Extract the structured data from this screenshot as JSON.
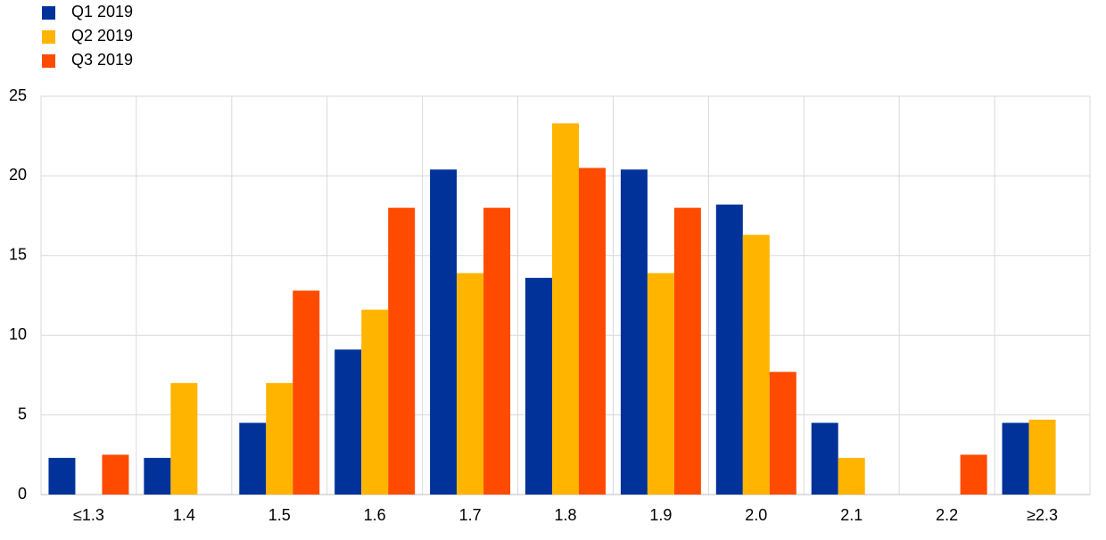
{
  "chart_data": {
    "type": "bar",
    "categories": [
      "≤1.3",
      "1.4",
      "1.5",
      "1.6",
      "1.7",
      "1.8",
      "1.9",
      "2.0",
      "2.1",
      "2.2",
      "≥2.3"
    ],
    "series": [
      {
        "name": "Q1 2019",
        "color": "#003299",
        "values": [
          2.3,
          2.3,
          4.5,
          9.1,
          20.4,
          13.6,
          20.4,
          18.2,
          4.5,
          0,
          4.5
        ]
      },
      {
        "name": "Q2 2019",
        "color": "#ffb400",
        "values": [
          0,
          7.0,
          7.0,
          11.6,
          13.9,
          23.3,
          13.9,
          16.3,
          2.3,
          0,
          4.7
        ]
      },
      {
        "name": "Q3 2019",
        "color": "#ff4b00",
        "values": [
          2.5,
          0,
          12.8,
          18.0,
          18.0,
          20.5,
          18.0,
          7.7,
          0,
          2.5,
          0
        ]
      }
    ],
    "ylim": [
      0,
      25
    ],
    "yticks": [
      0,
      5,
      10,
      15,
      20,
      25
    ],
    "grid": true
  }
}
